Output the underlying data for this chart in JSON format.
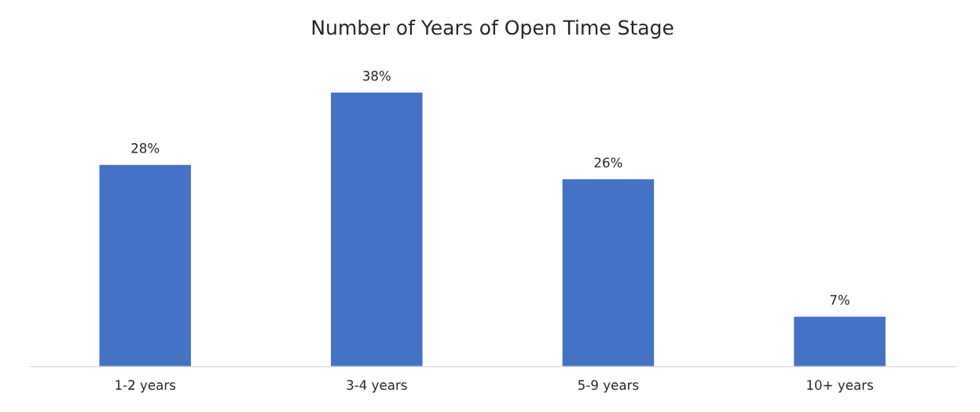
{
  "chart_data": {
    "type": "bar",
    "title": "Number of Years of Open Time Stage",
    "categories": [
      "1-2 years",
      "3-4 years",
      "5-9 years",
      "10+ years"
    ],
    "values": [
      28,
      38,
      26,
      7
    ],
    "value_labels": [
      "28%",
      "38%",
      "26%",
      "7%"
    ],
    "color": "#4472c4",
    "grid": false,
    "legend": false
  }
}
